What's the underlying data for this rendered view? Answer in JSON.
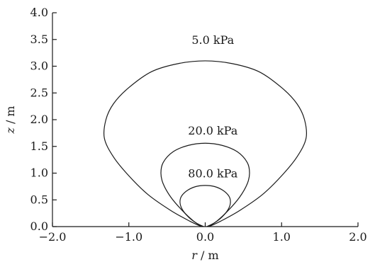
{
  "chart_data": {
    "type": "line",
    "title": "",
    "xlabel": {
      "var": "r",
      "unit": " / m"
    },
    "ylabel": {
      "var": "z",
      "unit": " / m"
    },
    "xlim": [
      -2.0,
      2.0
    ],
    "ylim": [
      0.0,
      4.0
    ],
    "x_ticks": [
      -2.0,
      -1.0,
      0.0,
      1.0,
      2.0
    ],
    "x_tick_labels": [
      "−2.0",
      "−1.0",
      "0.0",
      "1.0",
      "2.0"
    ],
    "y_ticks": [
      0.0,
      0.5,
      1.0,
      1.5,
      2.0,
      2.5,
      3.0,
      3.5,
      4.0
    ],
    "y_tick_labels": [
      "0.0",
      "0.5",
      "1.0",
      "1.5",
      "2.0",
      "2.5",
      "3.0",
      "3.5",
      "4.0"
    ],
    "grid": false,
    "series": [
      {
        "label": "5.0 kPa",
        "label_at": [
          0.1,
          3.5
        ],
        "points": [
          [
            0.05,
            0.0
          ],
          [
            0.2,
            0.1
          ],
          [
            0.45,
            0.3
          ],
          [
            0.75,
            0.6
          ],
          [
            1.0,
            0.95
          ],
          [
            1.2,
            1.3
          ],
          [
            1.32,
            1.65
          ],
          [
            1.3,
            2.0
          ],
          [
            1.2,
            2.3
          ],
          [
            1.0,
            2.6
          ],
          [
            0.7,
            2.9
          ],
          [
            0.35,
            3.05
          ],
          [
            0.0,
            3.1
          ],
          [
            -0.35,
            3.05
          ],
          [
            -0.7,
            2.9
          ],
          [
            -1.0,
            2.6
          ],
          [
            -1.2,
            2.3
          ],
          [
            -1.3,
            2.0
          ],
          [
            -1.32,
            1.65
          ],
          [
            -1.2,
            1.3
          ],
          [
            -1.0,
            0.95
          ],
          [
            -0.75,
            0.6
          ],
          [
            -0.45,
            0.3
          ],
          [
            -0.2,
            0.1
          ],
          [
            -0.05,
            0.0
          ]
        ]
      },
      {
        "label": "20.0 kPa",
        "label_at": [
          0.1,
          1.8
        ],
        "points": [
          [
            0.04,
            0.0
          ],
          [
            0.15,
            0.1
          ],
          [
            0.3,
            0.3
          ],
          [
            0.45,
            0.55
          ],
          [
            0.55,
            0.8
          ],
          [
            0.58,
            1.0
          ],
          [
            0.55,
            1.2
          ],
          [
            0.42,
            1.4
          ],
          [
            0.22,
            1.52
          ],
          [
            0.0,
            1.56
          ],
          [
            -0.22,
            1.52
          ],
          [
            -0.42,
            1.4
          ],
          [
            -0.55,
            1.2
          ],
          [
            -0.58,
            1.0
          ],
          [
            -0.55,
            0.8
          ],
          [
            -0.45,
            0.55
          ],
          [
            -0.3,
            0.3
          ],
          [
            -0.15,
            0.1
          ],
          [
            -0.04,
            0.0
          ]
        ]
      },
      {
        "label": "80.0 kPa",
        "label_at": [
          0.1,
          1.0
        ],
        "points": [
          [
            0.02,
            0.0
          ],
          [
            0.12,
            0.07
          ],
          [
            0.22,
            0.18
          ],
          [
            0.3,
            0.32
          ],
          [
            0.33,
            0.45
          ],
          [
            0.31,
            0.57
          ],
          [
            0.23,
            0.68
          ],
          [
            0.12,
            0.75
          ],
          [
            0.0,
            0.77
          ],
          [
            -0.12,
            0.75
          ],
          [
            -0.23,
            0.68
          ],
          [
            -0.31,
            0.57
          ],
          [
            -0.33,
            0.45
          ],
          [
            -0.3,
            0.32
          ],
          [
            -0.22,
            0.18
          ],
          [
            -0.12,
            0.07
          ],
          [
            -0.02,
            0.0
          ]
        ]
      }
    ]
  }
}
